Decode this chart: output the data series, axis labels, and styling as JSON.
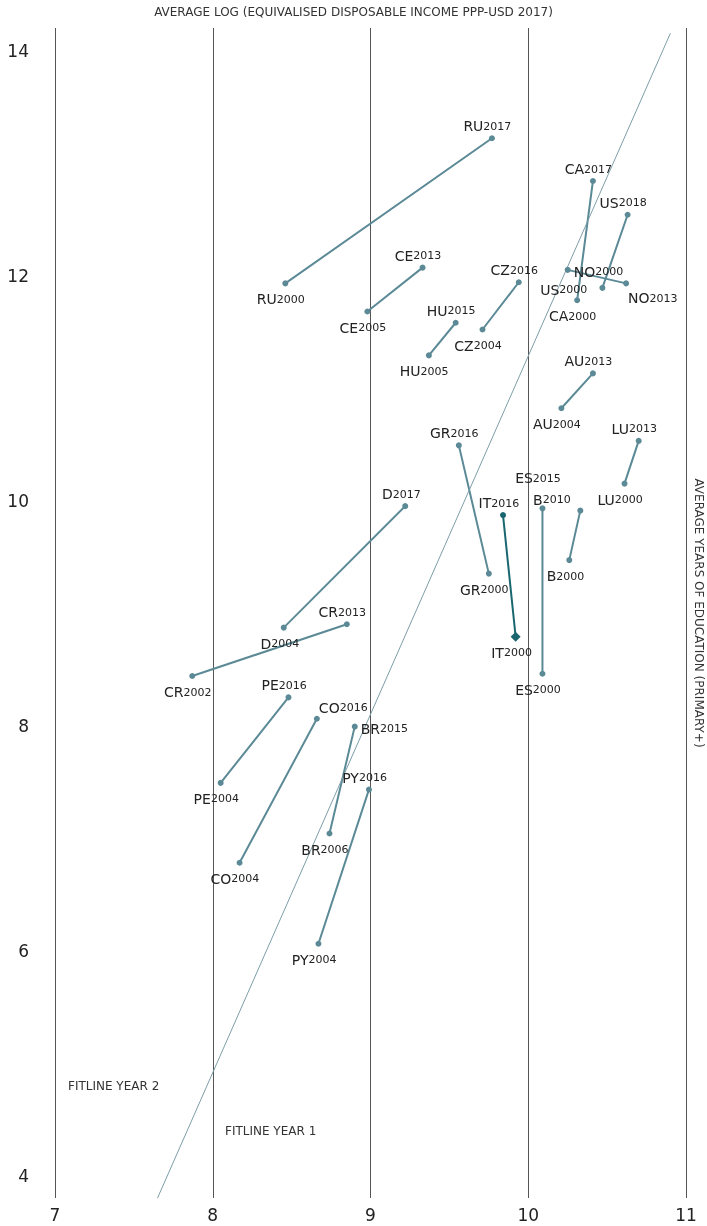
{
  "chart_data": {
    "type": "line",
    "xlabel": "AVERAGE LOG (EQUIVALISED DISPOSABLE INCOME PPP-USD 2017)",
    "ylabel": "AVERAGE YEARS OF EDUCATION (PRIMARY+)",
    "xlim": [
      7,
      11
    ],
    "ylim": [
      3.8,
      14.2
    ],
    "xticks": [
      7,
      8,
      9,
      10,
      11
    ],
    "yticks": [
      4,
      6,
      8,
      10,
      12,
      14
    ],
    "grid": "x",
    "marker": "circle",
    "series": [
      {
        "color": "#5b8a96",
        "x": [
          8.46,
          9.77
        ],
        "values": [
          11.93,
          13.22
        ]
      },
      {
        "color": "#5b8a96",
        "x": [
          8.98,
          9.33
        ],
        "values": [
          11.68,
          12.07
        ]
      },
      {
        "color": "#5b8a96",
        "x": [
          9.71,
          9.94
        ],
        "values": [
          11.52,
          11.94
        ]
      },
      {
        "color": "#5b8a96",
        "x": [
          9.37,
          9.54
        ],
        "values": [
          11.29,
          11.58
        ]
      },
      {
        "color": "#5b8a96",
        "x": [
          10.25,
          10.62
        ],
        "values": [
          12.05,
          11.93
        ]
      },
      {
        "color": "#5b8a96",
        "x": [
          10.31,
          10.41
        ],
        "values": [
          11.78,
          12.84
        ]
      },
      {
        "color": "#5b8a96",
        "x": [
          10.47,
          10.63
        ],
        "values": [
          11.89,
          12.54
        ]
      },
      {
        "color": "#5b8a96",
        "x": [
          10.21,
          10.41
        ],
        "values": [
          10.82,
          11.13
        ]
      },
      {
        "color": "#5b8a96",
        "x": [
          10.61,
          10.7
        ],
        "values": [
          10.15,
          10.53
        ]
      },
      {
        "color": "#5b8a96",
        "x": [
          9.75,
          9.56
        ],
        "values": [
          9.35,
          10.49
        ]
      },
      {
        "color": "#1a6670",
        "x": [
          9.92,
          9.84
        ],
        "values": [
          8.79,
          9.87
        ],
        "marker": [
          "diamond",
          "circle"
        ]
      },
      {
        "color": "#5b8a96",
        "x": [
          10.09,
          10.09
        ],
        "values": [
          8.46,
          9.93
        ]
      },
      {
        "color": "#5b8a96",
        "x": [
          10.26,
          10.33
        ],
        "values": [
          9.47,
          9.91
        ]
      },
      {
        "color": "#5b8a96",
        "x": [
          8.45,
          9.22
        ],
        "values": [
          8.87,
          9.95
        ]
      },
      {
        "color": "#5b8a96",
        "x": [
          7.87,
          8.85
        ],
        "values": [
          8.44,
          8.9
        ]
      },
      {
        "color": "#5b8a96",
        "x": [
          8.05,
          8.48
        ],
        "values": [
          7.49,
          8.25
        ]
      },
      {
        "color": "#5b8a96",
        "x": [
          8.17,
          8.66
        ],
        "values": [
          6.78,
          8.06
        ]
      },
      {
        "color": "#5b8a96",
        "x": [
          8.74,
          8.9
        ],
        "values": [
          7.04,
          7.99
        ]
      },
      {
        "color": "#5b8a96",
        "x": [
          8.67,
          8.99
        ],
        "values": [
          6.06,
          7.43
        ]
      },
      {
        "color": "#7d9ea8",
        "x": [
          7.65,
          10.9
        ],
        "values": [
          3.8,
          14.15
        ],
        "marker": "none"
      }
    ],
    "annotations": [
      {
        "text": "RU$_{2000}$",
        "x": 8.46,
        "y": 11.93
      },
      {
        "text": "RU$_{2017}$",
        "x": 9.77,
        "y": 13.22
      },
      {
        "text": "CE$_{2005}$",
        "x": 8.98,
        "y": 11.68
      },
      {
        "text": "CE$_{2013}$",
        "x": 9.33,
        "y": 12.07
      },
      {
        "text": "CZ$_{2004}$",
        "x": 9.71,
        "y": 11.52
      },
      {
        "text": "CZ$_{2016}$",
        "x": 9.94,
        "y": 11.94
      },
      {
        "text": "HU$_{2005}$",
        "x": 9.37,
        "y": 11.29
      },
      {
        "text": "HU$_{2015}$",
        "x": 9.54,
        "y": 11.58
      },
      {
        "text": "NO$_{2000}$",
        "x": 10.25,
        "y": 12.05
      },
      {
        "text": "NO$_{2013}$",
        "x": 10.62,
        "y": 11.93
      },
      {
        "text": "CA$_{2000}$",
        "x": 10.31,
        "y": 11.78
      },
      {
        "text": "CA$_{2017}$",
        "x": 10.41,
        "y": 12.84
      },
      {
        "text": "US$_{2000}$",
        "x": 10.47,
        "y": 11.89
      },
      {
        "text": "US$_{2018}$",
        "x": 10.63,
        "y": 12.54
      },
      {
        "text": "AU$_{2004}$",
        "x": 10.21,
        "y": 10.82
      },
      {
        "text": "AU$_{2013}$",
        "x": 10.41,
        "y": 11.13
      },
      {
        "text": "LU$_{2000}$",
        "x": 10.61,
        "y": 10.15
      },
      {
        "text": "LU$_{2013}$",
        "x": 10.7,
        "y": 10.53
      },
      {
        "text": "GR$_{2000}$",
        "x": 9.75,
        "y": 9.35
      },
      {
        "text": "GR$_{2016}$",
        "x": 9.56,
        "y": 10.49
      },
      {
        "text": "IT$_{2000}$",
        "x": 9.92,
        "y": 8.79
      },
      {
        "text": "IT$_{2016}$",
        "x": 9.84,
        "y": 9.87
      },
      {
        "text": "ES$_{2000}$",
        "x": 10.09,
        "y": 8.46
      },
      {
        "text": "ES$_{2015}$",
        "x": 10.09,
        "y": 9.93
      },
      {
        "text": "B$_{2000}$",
        "x": 10.26,
        "y": 9.47
      },
      {
        "text": "B$_{2010}$",
        "x": 10.33,
        "y": 9.91
      },
      {
        "text": "D$_{2004}$",
        "x": 8.45,
        "y": 8.87
      },
      {
        "text": "D$_{2017}$",
        "x": 9.22,
        "y": 9.95
      },
      {
        "text": "CR$_{2002}$",
        "x": 7.87,
        "y": 8.44
      },
      {
        "text": "CR$_{2013}$",
        "x": 8.85,
        "y": 8.9
      },
      {
        "text": "PE$_{2004}$",
        "x": 8.05,
        "y": 7.49
      },
      {
        "text": "PE$_{2016}$",
        "x": 8.48,
        "y": 8.25
      },
      {
        "text": "CO$_{2004}$",
        "x": 8.17,
        "y": 6.78
      },
      {
        "text": "CO$_{2016}$",
        "x": 8.66,
        "y": 8.06
      },
      {
        "text": "BR$_{2006}$",
        "x": 8.74,
        "y": 7.04
      },
      {
        "text": "BR$_{2015}$",
        "x": 8.9,
        "y": 7.99
      },
      {
        "text": "PY$_{2004}$",
        "x": 8.67,
        "y": 6.06
      },
      {
        "text": "PY$_{2016}$",
        "x": 8.99,
        "y": 7.43
      },
      "FITLINE YEAR 2",
      "FITLINE YEAR 1"
    ]
  }
}
